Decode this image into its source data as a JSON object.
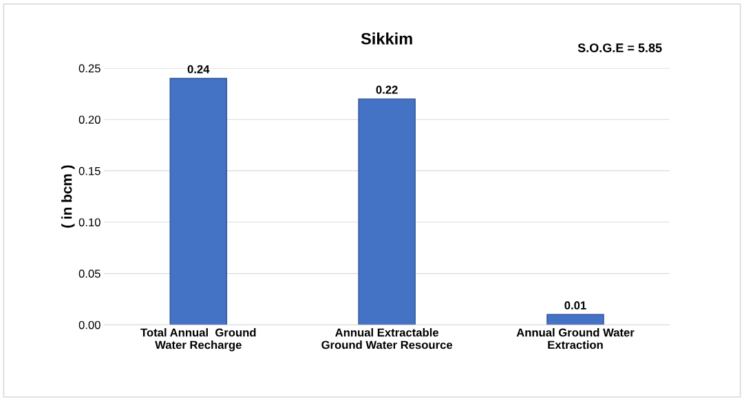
{
  "chart_data": {
    "type": "bar",
    "title": "Sikkim",
    "ylabel": "( in bcm )",
    "annotations": [
      "S.O.G.E = 5.85"
    ],
    "categories": [
      "Total Annual  Ground\nWater Recharge",
      "Annual Extractable\nGround Water Resource",
      "Annual Ground Water\nExtraction"
    ],
    "values": [
      0.24,
      0.22,
      0.01
    ],
    "color": "#4472c4",
    "ylim": [
      0,
      0.25
    ],
    "yticks": [
      {
        "value": 0,
        "label": "0.00"
      },
      {
        "value": 0.05,
        "label": "0.05"
      },
      {
        "value": 0.1,
        "label": "0.10"
      },
      {
        "value": 0.15,
        "label": "0.15"
      },
      {
        "value": 0.2,
        "label": "0.20"
      },
      {
        "value": 0.25,
        "label": "0.25"
      }
    ],
    "grid": "y",
    "data_labels": true
  }
}
